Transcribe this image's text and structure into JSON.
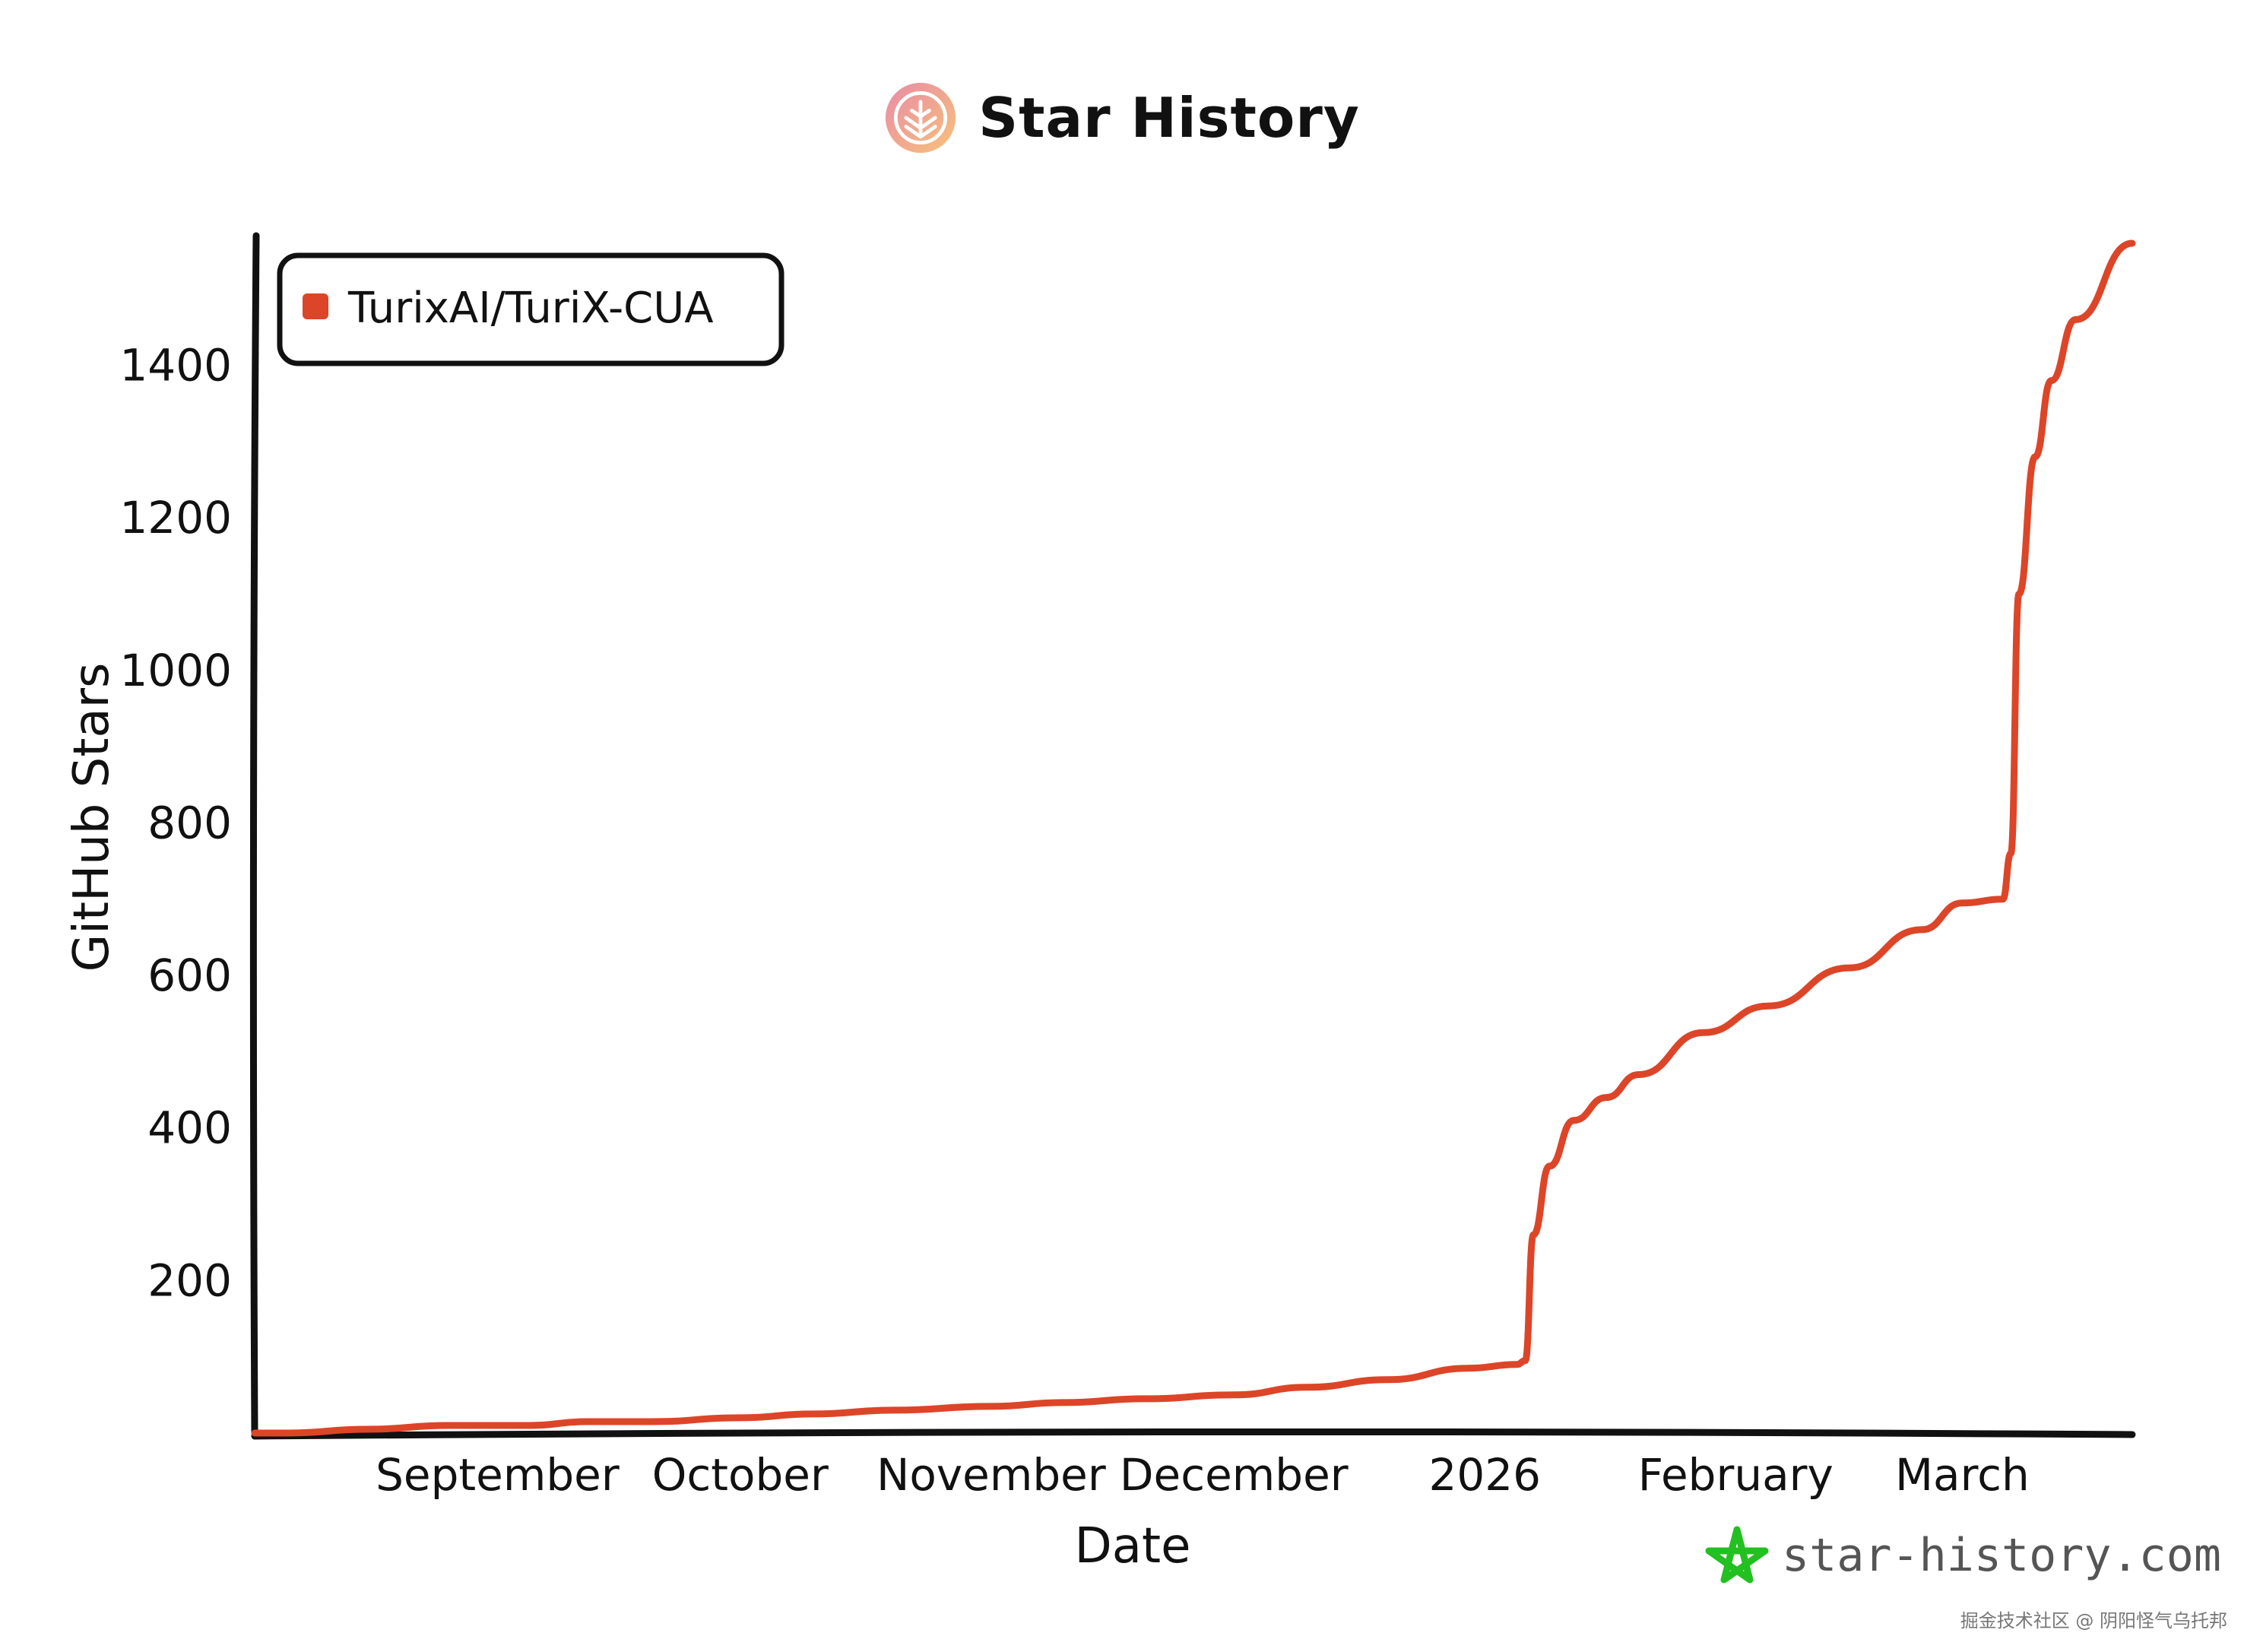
{
  "header": {
    "title": "Star History"
  },
  "footer": {
    "brand": "star-history.com",
    "watermark": "掘金技术社区 @ 阴阳怪气乌托邦"
  },
  "colors": {
    "series": "#dd4528",
    "axis": "#111111",
    "brand_star": "#22c021"
  },
  "chart_data": {
    "type": "line",
    "title": "Star History",
    "xlabel": "Date",
    "ylabel": "GitHub Stars",
    "x_ticks": [
      {
        "label": "September",
        "date": "2025-09-01"
      },
      {
        "label": "October",
        "date": "2025-10-01"
      },
      {
        "label": "November",
        "date": "2025-11-01"
      },
      {
        "label": "December",
        "date": "2025-12-01"
      },
      {
        "label": "2026",
        "date": "2026-01-01"
      },
      {
        "label": "February",
        "date": "2026-02-01"
      },
      {
        "label": "March",
        "date": "2026-03-01"
      }
    ],
    "y_ticks": [
      200,
      400,
      600,
      800,
      1000,
      1200,
      1400
    ],
    "xlim": [
      "2025-08-02",
      "2026-03-22"
    ],
    "ylim": [
      0,
      1570
    ],
    "legend": "top-left",
    "grid": false,
    "series": [
      {
        "name": "TurixAI/TuriX-CUA",
        "x": [
          "2025-08-02",
          "2025-08-06",
          "2025-08-16",
          "2025-08-26",
          "2025-09-05",
          "2025-09-12",
          "2025-09-20",
          "2025-10-01",
          "2025-10-10",
          "2025-10-20",
          "2025-11-01",
          "2025-11-10",
          "2025-11-20",
          "2025-12-01",
          "2025-12-10",
          "2025-12-20",
          "2025-12-30",
          "2026-01-05",
          "2026-01-06",
          "2026-01-07",
          "2026-01-09",
          "2026-01-12",
          "2026-01-16",
          "2026-01-20",
          "2026-01-28",
          "2026-02-05",
          "2026-02-15",
          "2026-02-24",
          "2026-03-01",
          "2026-03-06",
          "2026-03-07",
          "2026-03-08",
          "2026-03-10",
          "2026-03-12",
          "2026-03-15",
          "2026-03-22"
        ],
        "values": [
          0,
          0,
          5,
          10,
          10,
          15,
          15,
          20,
          25,
          30,
          35,
          40,
          45,
          50,
          60,
          70,
          85,
          90,
          95,
          260,
          350,
          410,
          440,
          470,
          525,
          560,
          610,
          660,
          695,
          700,
          760,
          1100,
          1280,
          1380,
          1460,
          1560
        ]
      }
    ]
  }
}
